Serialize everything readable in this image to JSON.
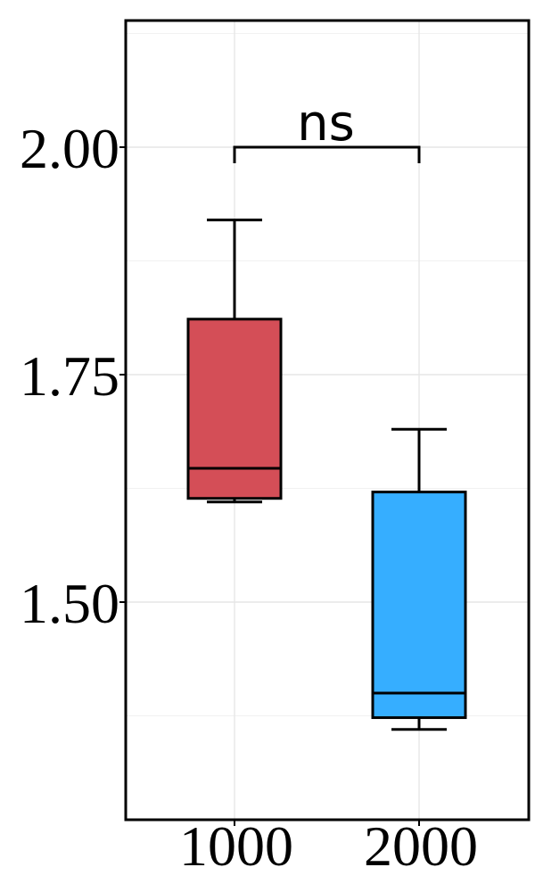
{
  "chart_data": {
    "type": "boxplot",
    "categories": [
      "1000",
      "2000"
    ],
    "series": [
      {
        "category": "1000",
        "whisker_low": 1.61,
        "q1": 1.614,
        "median": 1.647,
        "q3": 1.811,
        "whisker_high": 1.92,
        "color": "#D44E57"
      },
      {
        "category": "2000",
        "whisker_low": 1.36,
        "q1": 1.373,
        "median": 1.4,
        "q3": 1.621,
        "whisker_high": 1.69,
        "color": "#36AEFF"
      }
    ],
    "y_ticks": [
      1.5,
      1.75,
      2.0
    ],
    "y_tick_labels": [
      "1.50",
      "1.75",
      "2.00"
    ],
    "ylim": [
      1.25,
      2.14
    ],
    "grid": true,
    "annotation": {
      "label": "ns",
      "from": "1000",
      "to": "2000",
      "y": 2.0
    },
    "title": "",
    "xlabel": "",
    "ylabel": ""
  }
}
